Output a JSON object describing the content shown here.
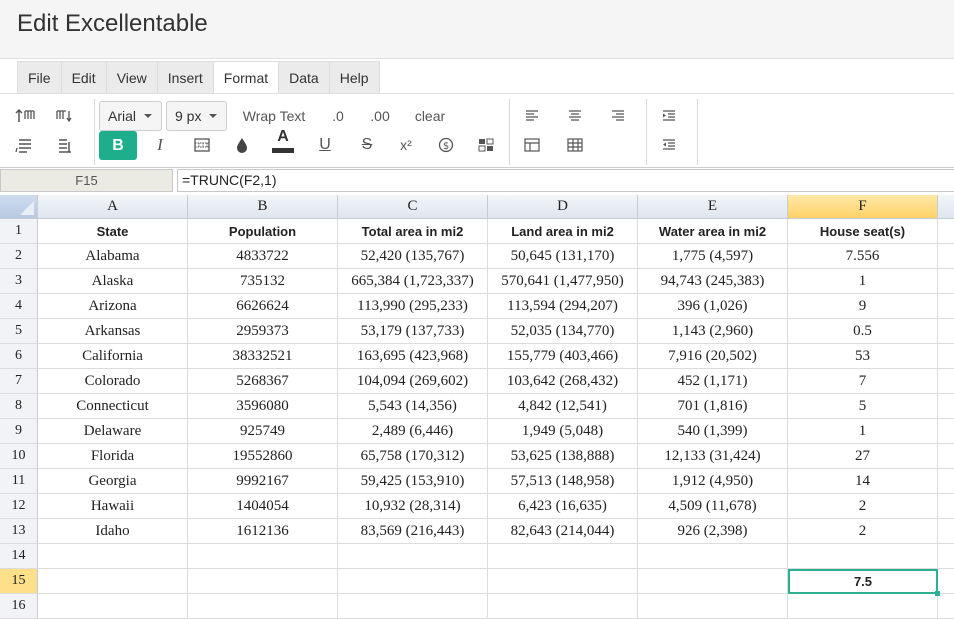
{
  "app": {
    "title": "Edit Excellentable"
  },
  "menu": {
    "items": [
      {
        "label": "File"
      },
      {
        "label": "Edit"
      },
      {
        "label": "View"
      },
      {
        "label": "Insert"
      },
      {
        "label": "Format",
        "active": true
      },
      {
        "label": "Data"
      },
      {
        "label": "Help"
      }
    ]
  },
  "toolbar": {
    "font_family": "Arial",
    "font_size": "9 px",
    "wrap_text": "Wrap Text",
    "decimal_decrease": ".0",
    "decimal_increase": ".00",
    "clear": "clear",
    "bold": "B",
    "italic": "I",
    "text_color_letter": "A",
    "underline": "U",
    "strikethrough": "S",
    "superscript": "x²",
    "accent_color": "#1fae8c",
    "icons": [
      "insert-row-above-icon",
      "insert-col-icon",
      "delete-row-icon",
      "delete-col-icon",
      "borders-icon",
      "fill-color-icon",
      "currency-icon",
      "conditional-format-icon",
      "align-left-icon",
      "align-center-icon",
      "align-right-icon",
      "merge-icon",
      "table-icon",
      "indent-increase-icon",
      "indent-decrease-icon"
    ]
  },
  "formula_bar": {
    "cell_ref": "F15",
    "formula": "=TRUNC(F2,1)"
  },
  "sheet": {
    "columns": [
      "A",
      "B",
      "C",
      "D",
      "E",
      "F"
    ],
    "selected_column": "F",
    "selected_row": "15",
    "row_numbers": [
      "1",
      "2",
      "3",
      "4",
      "5",
      "6",
      "7",
      "8",
      "9",
      "10",
      "11",
      "12",
      "13",
      "14",
      "15",
      "16"
    ],
    "header_row": [
      "State",
      "Population",
      "Total area in mi2",
      "Land area in mi2",
      "Water area in mi2",
      "House seat(s)"
    ],
    "rows": [
      [
        "Alabama",
        "4833722",
        "52,420 (135,767)",
        "50,645 (131,170)",
        "1,775 (4,597)",
        "7.556"
      ],
      [
        "Alaska",
        "735132",
        "665,384 (1,723,337)",
        "570,641 (1,477,950)",
        "94,743 (245,383)",
        "1"
      ],
      [
        "Arizona",
        "6626624",
        "113,990 (295,233)",
        "113,594 (294,207)",
        "396 (1,026)",
        "9"
      ],
      [
        "Arkansas",
        "2959373",
        "53,179 (137,733)",
        "52,035 (134,770)",
        "1,143 (2,960)",
        "0.5"
      ],
      [
        "California",
        "38332521",
        "163,695 (423,968)",
        "155,779 (403,466)",
        "7,916 (20,502)",
        "53"
      ],
      [
        "Colorado",
        "5268367",
        "104,094 (269,602)",
        "103,642 (268,432)",
        "452 (1,171)",
        "7"
      ],
      [
        "Connecticut",
        "3596080",
        "5,543 (14,356)",
        "4,842 (12,541)",
        "701 (1,816)",
        "5"
      ],
      [
        "Delaware",
        "925749",
        "2,489 (6,446)",
        "1,949 (5,048)",
        "540 (1,399)",
        "1"
      ],
      [
        "Florida",
        "19552860",
        "65,758 (170,312)",
        "53,625 (138,888)",
        "12,133 (31,424)",
        "27"
      ],
      [
        "Georgia",
        "9992167",
        "59,425 (153,910)",
        "57,513 (148,958)",
        "1,912 (4,950)",
        "14"
      ],
      [
        "Hawaii",
        "1404054",
        "10,932 (28,314)",
        "6,423 (16,635)",
        "4,509 (11,678)",
        "2"
      ],
      [
        "Idaho",
        "1612136",
        "83,569 (216,443)",
        "82,643 (214,044)",
        "926 (2,398)",
        "2"
      ]
    ],
    "f15_value": "7.5"
  }
}
